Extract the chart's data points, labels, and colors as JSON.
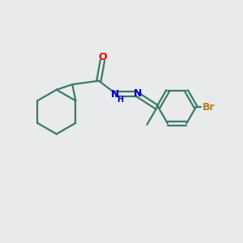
{
  "background_color": "#e8eaec",
  "bond_color": "#3d7a6a",
  "atom_colors": {
    "O": "#ff0000",
    "N": "#0000cc",
    "Br": "#b87820",
    "H": "#0000cc"
  },
  "figsize": [
    3.0,
    3.0
  ],
  "dpi": 100
}
